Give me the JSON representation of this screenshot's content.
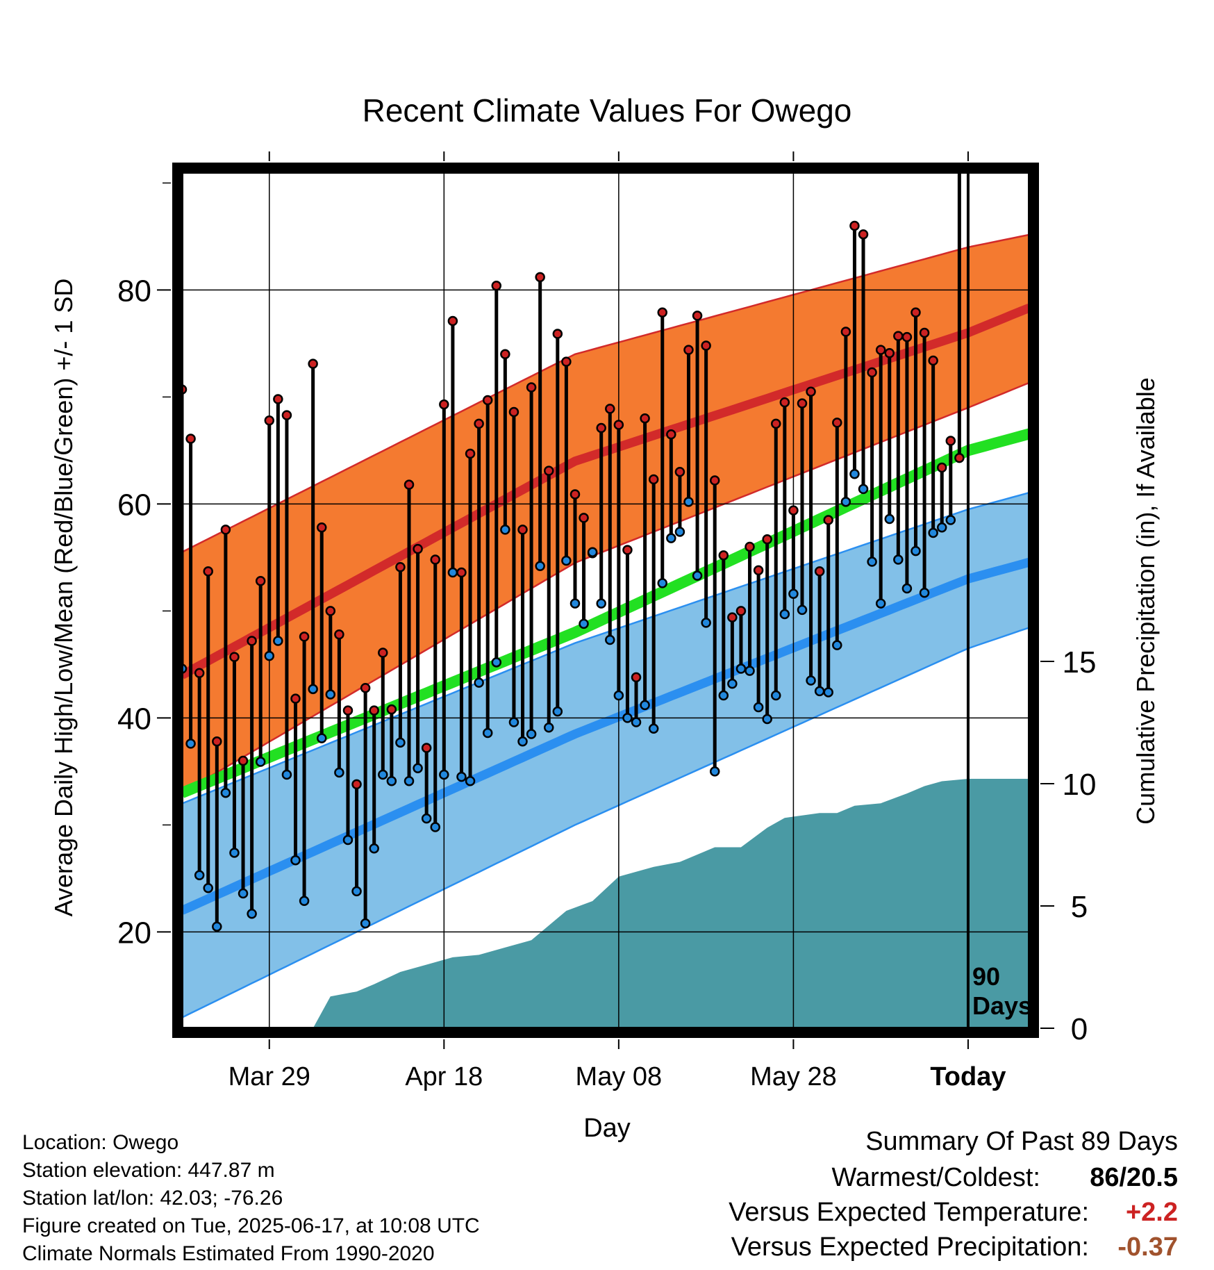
{
  "chart_data": {
    "type": "line",
    "title": "Recent Climate Values For Owego",
    "xlabel": "Day",
    "ylabel": "Average Daily High/Low/Mean (Red/Blue/Green) +/- 1 SD",
    "y2label": "Cumulative Precipitation (in), If Available",
    "x_range_days_relative_to_today": [
      -90,
      7
    ],
    "ylim": [
      11,
      91
    ],
    "y_ticks": [
      20,
      40,
      60,
      80
    ],
    "y2lim": [
      0,
      35
    ],
    "y2_ticks": [
      0,
      5,
      10,
      15
    ],
    "x_tick_labels": [
      {
        "label": "Mar 29",
        "day": -80
      },
      {
        "label": "Apr 18",
        "day": -60
      },
      {
        "label": "May 08",
        "day": -40
      },
      {
        "label": "May 28",
        "day": -20
      },
      {
        "label": "Today",
        "day": 0
      }
    ],
    "today_marker_label": [
      "90",
      "Days"
    ],
    "grid": true,
    "normals": {
      "high_mean": {
        "day": [
          -90,
          -45,
          0,
          9
        ],
        "value": [
          44,
          64,
          76,
          79
        ]
      },
      "high_sd_upper": {
        "day": [
          -90,
          -45,
          0,
          9
        ],
        "value": [
          55.5,
          74,
          84,
          85.5
        ]
      },
      "high_sd_lower": {
        "day": [
          -90,
          -45,
          0,
          9
        ],
        "value": [
          33,
          54.5,
          69,
          72
        ]
      },
      "mean": {
        "day": [
          -90,
          -45,
          0,
          9
        ],
        "value": [
          33,
          48,
          65,
          67
        ]
      },
      "low_mean": {
        "day": [
          -90,
          -45,
          0,
          9
        ],
        "value": [
          22,
          38.5,
          53,
          55
        ]
      },
      "low_sd_upper": {
        "day": [
          -90,
          -45,
          0,
          9
        ],
        "value": [
          32,
          47,
          59.5,
          61.5
        ]
      },
      "low_sd_lower": {
        "day": [
          -90,
          -45,
          0,
          9
        ],
        "value": [
          12,
          30,
          46.5,
          49
        ]
      }
    },
    "series": [
      {
        "name": "High",
        "color": "#cc2222",
        "values": [
          70.7,
          66.1,
          44.2,
          53.7,
          37.8,
          57.6,
          45.7,
          36,
          47.2,
          52.8,
          67.8,
          69.8,
          68.3,
          41.8,
          47.6,
          73.1,
          57.8,
          50,
          47.8,
          40.7,
          33.8,
          42.8,
          40.7,
          46.1,
          40.8,
          54.1,
          61.8,
          55.8,
          37.2,
          54.8,
          69.3,
          77.1,
          53.6,
          64.7,
          67.5,
          69.7,
          80.4,
          74,
          68.6,
          57.6,
          70.9,
          81.2,
          63.1,
          75.9,
          73.3,
          60.9,
          58.7,
          55.4,
          67.1,
          68.9,
          67.4,
          55.7,
          43.8,
          68,
          62.3,
          77.9,
          66.5,
          63,
          74.4,
          77.6,
          74.8,
          62.2,
          55.2,
          49.4,
          50,
          56,
          53.8,
          56.7,
          67.5,
          69.5,
          59.4,
          69.4,
          70.5,
          53.7,
          58.5,
          67.6,
          76.1,
          86,
          85.2,
          72.3,
          74.4,
          74.1,
          75.7,
          75.6,
          77.9,
          76,
          73.4,
          63.4,
          65.9,
          64.3
        ]
      },
      {
        "name": "Low",
        "color": "#2288dd",
        "values": [
          44.6,
          37.6,
          25.3,
          24.1,
          20.5,
          33,
          27.4,
          23.6,
          21.7,
          35.9,
          45.8,
          47.2,
          34.7,
          26.7,
          22.9,
          42.7,
          38.1,
          42.2,
          34.9,
          28.6,
          23.8,
          20.8,
          27.8,
          34.7,
          34.1,
          37.7,
          34.1,
          35.3,
          30.6,
          29.8,
          34.7,
          53.6,
          34.5,
          34.1,
          43.3,
          38.6,
          45.2,
          57.6,
          39.6,
          37.8,
          38.5,
          54.2,
          39.1,
          40.6,
          54.7,
          50.7,
          48.8,
          55.5,
          50.7,
          47.3,
          42.1,
          40,
          39.6,
          41.2,
          39,
          52.6,
          56.8,
          57.4,
          60.2,
          53.3,
          48.9,
          35,
          42.1,
          43.2,
          44.6,
          44.4,
          41,
          39.9,
          42.1,
          49.7,
          51.6,
          50.1,
          43.5,
          42.5,
          42.4,
          46.8,
          60.2,
          62.8,
          61.4,
          54.6,
          50.7,
          58.6,
          54.8,
          52.1,
          55.6,
          51.7,
          57.3,
          57.8,
          58.5
        ]
      }
    ],
    "cumulative_precipitation": {
      "day": [
        -90,
        -75,
        -73,
        -70,
        -68,
        -65,
        -62,
        -59,
        -56,
        -53,
        -50,
        -46,
        -43,
        -40,
        -36,
        -33,
        -29,
        -26,
        -23,
        -21,
        -17,
        -15,
        -13,
        -10,
        -7,
        -5,
        -3,
        0,
        9
      ],
      "value": [
        0,
        0,
        1.3,
        1.5,
        1.8,
        2.3,
        2.6,
        2.9,
        3,
        3.3,
        3.6,
        4.8,
        5.2,
        6.2,
        6.6,
        6.8,
        7.4,
        7.4,
        8.2,
        8.6,
        8.8,
        8.8,
        9.1,
        9.2,
        9.6,
        9.9,
        10.1,
        10.2,
        10.2
      ]
    }
  },
  "info": {
    "location": "Location: Owego",
    "elevation": "Station elevation: 447.87 m",
    "latlon": "Station lat/lon: 42.03; -76.26",
    "created": "Figure created on Tue, 2025-06-17, at 10:08 UTC",
    "normals": "Climate Normals Estimated From 1990-2020"
  },
  "summary": {
    "title": "Summary Of Past 89 Days",
    "warm_cold_label": "Warmest/Coldest:",
    "warm_cold_value": "86/20.5",
    "temp_label": "Versus Expected Temperature:",
    "temp_value": "+2.2",
    "temp_color": "#cc2222",
    "precip_label": "Versus Expected Precipitation:",
    "precip_value": "-0.37",
    "precip_color": "#a0522d"
  },
  "colors": {
    "high_band": "#f47a30",
    "high_line": "#d22a2a",
    "low_band": "#82c0e8",
    "low_line": "#2b8ff0",
    "mean_line": "#22e022",
    "precip_fill": "#4a9aa4"
  }
}
